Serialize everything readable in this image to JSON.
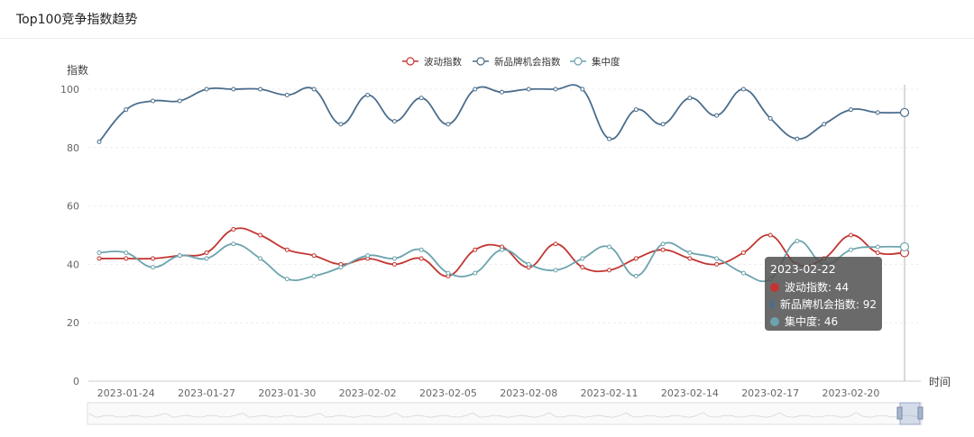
{
  "page": {
    "title": "Top100竞争指数趋势"
  },
  "colors": {
    "volatility": "#c23531",
    "new_brand": "#4a6d8c",
    "concentration": "#6ba3ad",
    "axis": "#999999",
    "grid": "#eeeeee"
  },
  "chart_data": {
    "type": "line",
    "ylabel": "指数",
    "xlabel": "时间",
    "ylim": [
      0,
      100
    ],
    "yticks": [
      0,
      20,
      40,
      60,
      80,
      100
    ],
    "x": [
      "2023-01-23",
      "2023-01-24",
      "2023-01-25",
      "2023-01-26",
      "2023-01-27",
      "2023-01-28",
      "2023-01-29",
      "2023-01-30",
      "2023-01-31",
      "2023-02-01",
      "2023-02-02",
      "2023-02-03",
      "2023-02-04",
      "2023-02-05",
      "2023-02-06",
      "2023-02-07",
      "2023-02-08",
      "2023-02-09",
      "2023-02-10",
      "2023-02-11",
      "2023-02-12",
      "2023-02-13",
      "2023-02-14",
      "2023-02-15",
      "2023-02-16",
      "2023-02-17",
      "2023-02-18",
      "2023-02-19",
      "2023-02-20",
      "2023-02-21",
      "2023-02-22"
    ],
    "xtick_labels": [
      "2023-01-24",
      "2023-01-27",
      "2023-01-30",
      "2023-02-02",
      "2023-02-05",
      "2023-02-08",
      "2023-02-11",
      "2023-02-14",
      "2023-02-17",
      "2023-02-20"
    ],
    "legend_position": "top-center",
    "series": [
      {
        "name": "波动指数",
        "color_key": "volatility",
        "values": [
          42,
          42,
          42,
          43,
          44,
          52,
          50,
          45,
          43,
          40,
          42,
          40,
          42,
          36,
          45,
          46,
          39,
          47,
          39,
          38,
          42,
          45,
          42,
          40,
          44,
          50,
          40,
          42,
          50,
          44,
          44
        ]
      },
      {
        "name": "新品牌机会指数",
        "color_key": "new_brand",
        "values": [
          82,
          93,
          96,
          96,
          100,
          100,
          100,
          98,
          100,
          88,
          98,
          89,
          97,
          88,
          100,
          99,
          100,
          100,
          100,
          83,
          93,
          88,
          97,
          91,
          100,
          90,
          83,
          88,
          93,
          92,
          92
        ]
      },
      {
        "name": "集中度",
        "color_key": "concentration",
        "values": [
          44,
          44,
          39,
          43,
          42,
          47,
          42,
          35,
          36,
          39,
          43,
          42,
          45,
          37,
          37,
          45,
          40,
          38,
          42,
          46,
          36,
          47,
          44,
          42,
          37,
          35,
          48,
          40,
          45,
          46,
          46
        ]
      }
    ]
  },
  "tooltip": {
    "date": "2023-02-22",
    "rows": [
      {
        "label": "波动指数: 44",
        "color_key": "volatility"
      },
      {
        "label": "新品牌机会指数: 92",
        "color_key": "new_brand"
      },
      {
        "label": "集中度: 46",
        "color_key": "concentration"
      }
    ]
  }
}
